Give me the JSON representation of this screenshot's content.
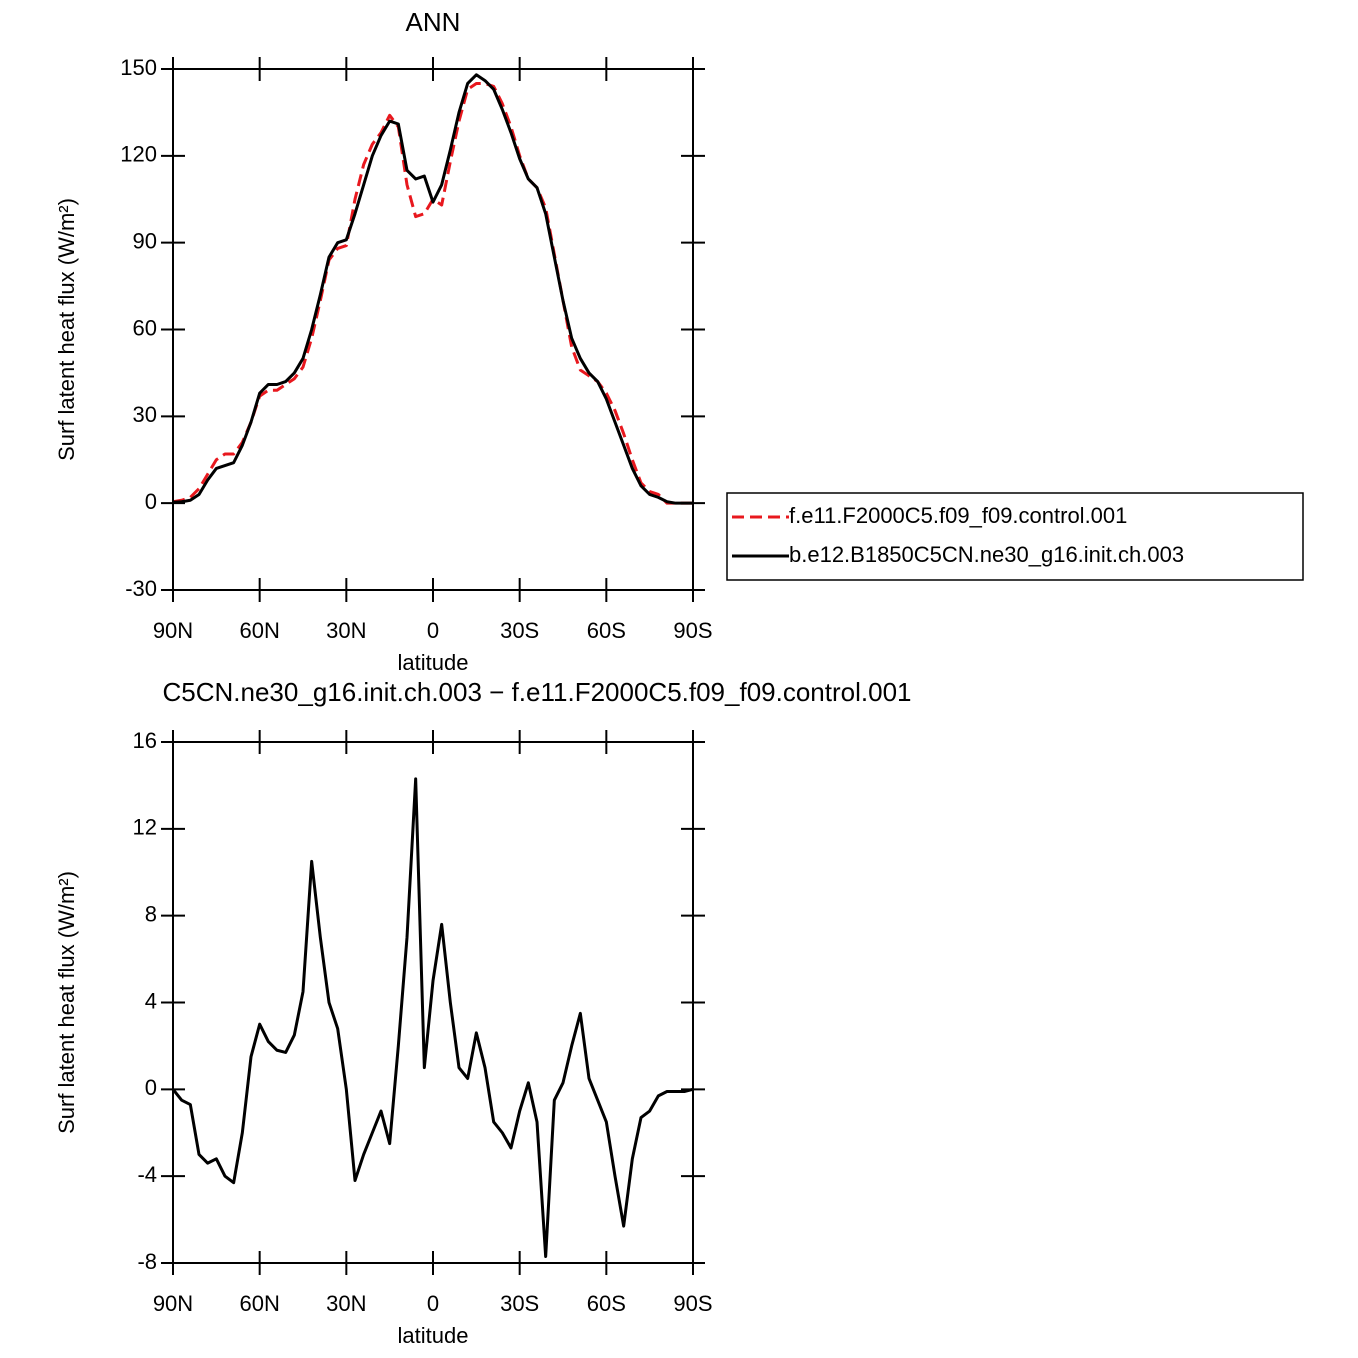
{
  "chart_data": [
    {
      "type": "line",
      "title": "ANN",
      "xlabel": "latitude",
      "ylabel": "Surf latent heat flux (W/m²)",
      "x": [
        90,
        87,
        84,
        81,
        78,
        75,
        72,
        69,
        66,
        63,
        60,
        57,
        54,
        51,
        48,
        45,
        42,
        39,
        36,
        33,
        30,
        27,
        24,
        21,
        18,
        15,
        12,
        9,
        6,
        3,
        0,
        -3,
        -6,
        -9,
        -12,
        -15,
        -18,
        -21,
        -24,
        -27,
        -30,
        -33,
        -36,
        -39,
        -42,
        -45,
        -48,
        -51,
        -54,
        -57,
        -60,
        -63,
        -66,
        -69,
        -72,
        -75,
        -78,
        -81,
        -84,
        -87,
        -90
      ],
      "xlim": [
        90,
        -90
      ],
      "xticks": [
        {
          "value": 90,
          "label": "90N"
        },
        {
          "value": 60,
          "label": "60N"
        },
        {
          "value": 30,
          "label": "30N"
        },
        0,
        {
          "value": -30,
          "label": "30S"
        },
        {
          "value": -60,
          "label": "60S"
        },
        {
          "value": -90,
          "label": "90S"
        }
      ],
      "ylim": [
        -30,
        150
      ],
      "yticks": [
        -30,
        0,
        30,
        60,
        90,
        120,
        150
      ],
      "legend": "right",
      "series": [
        {
          "name": "f.e11.F2000C5.f09_f09.control.001",
          "color": "#e8181e",
          "dash": true,
          "values": [
            0.5,
            1,
            2,
            5,
            10,
            15,
            17,
            17,
            21,
            28,
            37,
            39,
            39,
            41,
            43,
            47,
            57,
            70,
            84,
            88,
            89,
            105,
            117,
            124,
            128,
            134,
            130,
            110,
            99,
            100,
            105,
            103,
            118,
            132,
            143,
            145,
            145,
            144,
            138,
            130,
            120,
            112,
            109,
            102,
            86,
            70,
            54,
            46,
            44,
            42,
            38,
            32,
            24,
            15,
            7,
            4,
            3,
            0,
            0,
            0,
            0
          ]
        },
        {
          "name": "b.e12.B1850C5CN.ne30_g16.init.ch.003",
          "color": "#000000",
          "dash": false,
          "values": [
            0.3,
            0.5,
            1,
            3,
            8,
            12,
            13,
            14,
            20,
            28,
            38,
            41,
            41,
            42,
            45,
            50,
            60,
            72,
            85,
            90,
            91,
            100,
            110,
            120,
            127,
            132,
            131,
            115,
            112,
            113,
            104,
            110,
            122,
            135,
            145,
            148,
            146,
            143,
            136,
            128,
            119,
            112,
            109,
            100,
            85,
            70,
            57,
            50,
            45,
            42,
            36,
            28,
            20,
            12,
            6,
            3,
            2,
            0.5,
            0,
            0,
            0
          ]
        }
      ]
    },
    {
      "type": "line",
      "title": "C5CN.ne30_g16.init.ch.003 − f.e11.F2000C5.f09_f09.control.001",
      "xlabel": "latitude",
      "ylabel": "Surf latent heat flux (W/m²)",
      "x": [
        90,
        87,
        84,
        81,
        78,
        75,
        72,
        69,
        66,
        63,
        60,
        57,
        54,
        51,
        48,
        45,
        42,
        39,
        36,
        33,
        30,
        27,
        24,
        21,
        18,
        15,
        12,
        9,
        6,
        3,
        0,
        -3,
        -6,
        -9,
        -12,
        -15,
        -18,
        -21,
        -24,
        -27,
        -30,
        -33,
        -36,
        -39,
        -42,
        -45,
        -48,
        -51,
        -54,
        -57,
        -60,
        -63,
        -66,
        -69,
        -72,
        -75,
        -78,
        -81,
        -84,
        -87,
        -90
      ],
      "xlim": [
        90,
        -90
      ],
      "xticks": [
        {
          "value": 90,
          "label": "90N"
        },
        {
          "value": 60,
          "label": "60N"
        },
        {
          "value": 30,
          "label": "30N"
        },
        0,
        {
          "value": -30,
          "label": "30S"
        },
        {
          "value": -60,
          "label": "60S"
        },
        {
          "value": -90,
          "label": "90S"
        }
      ],
      "ylim": [
        -8,
        16
      ],
      "yticks": [
        -8,
        -4,
        0,
        4,
        8,
        12,
        16
      ],
      "series": [
        {
          "color": "#000000",
          "dash": false,
          "values": [
            0,
            -0.5,
            -0.7,
            -3,
            -3.4,
            -3.2,
            -4,
            -4.3,
            -2,
            1.5,
            3,
            2.2,
            1.8,
            1.7,
            2.5,
            4.5,
            10.5,
            7,
            4,
            2.8,
            0,
            -4.2,
            -3,
            -2,
            -1,
            -2.5,
            2,
            7,
            14.3,
            1,
            5,
            7.6,
            4,
            1,
            0.5,
            2.6,
            1,
            -1.5,
            -2,
            -2.7,
            -1,
            0.3,
            -1.5,
            -7.7,
            -0.5,
            0.3,
            2,
            3.5,
            0.5,
            -0.5,
            -1.5,
            -4,
            -6.3,
            -3.2,
            -1.3,
            -1,
            -0.3,
            -0.1,
            -0.1,
            -0.1,
            0
          ]
        }
      ]
    }
  ]
}
